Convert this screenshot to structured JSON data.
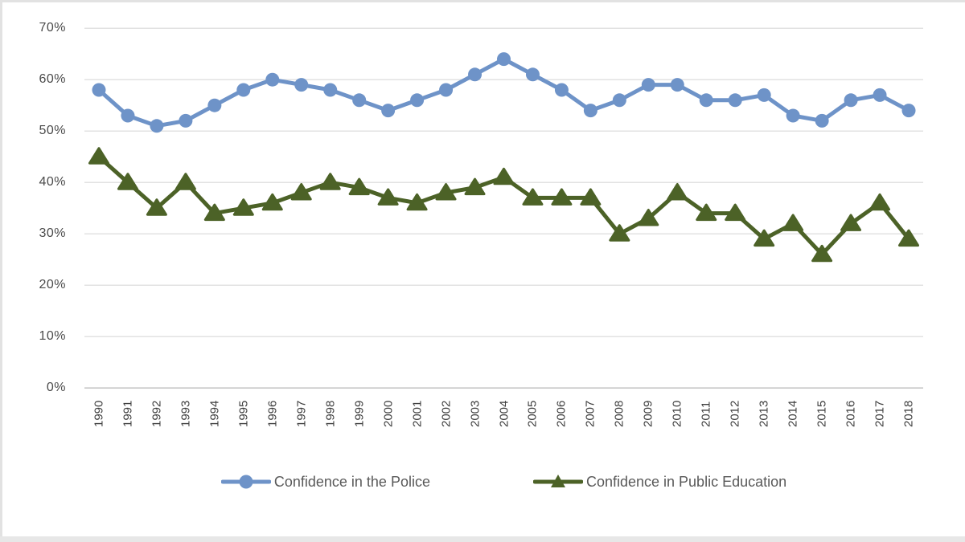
{
  "chart_data": {
    "type": "line",
    "title": "",
    "xlabel": "",
    "ylabel": "",
    "categories": [
      "1990",
      "1991",
      "1992",
      "1993",
      "1994",
      "1995",
      "1996",
      "1997",
      "1998",
      "1999",
      "2000",
      "2001",
      "2002",
      "2003",
      "2004",
      "2005",
      "2006",
      "2007",
      "2008",
      "2009",
      "2010",
      "2011",
      "2012",
      "2013",
      "2014",
      "2015",
      "2016",
      "2017",
      "2018"
    ],
    "series": [
      {
        "name": "Confidence in the Police",
        "marker": "circle",
        "color": "#6E93C8",
        "values": [
          58,
          53,
          51,
          52,
          55,
          58,
          60,
          59,
          58,
          56,
          54,
          56,
          58,
          61,
          64,
          61,
          58,
          54,
          56,
          59,
          59,
          56,
          56,
          57,
          53,
          52,
          56,
          57,
          54
        ]
      },
      {
        "name": "Confidence in Public Education",
        "marker": "triangle",
        "color": "#4C6227",
        "values": [
          45,
          40,
          35,
          40,
          34,
          35,
          36,
          38,
          40,
          39,
          37,
          36,
          38,
          39,
          41,
          37,
          37,
          37,
          30,
          33,
          38,
          34,
          34,
          29,
          32,
          26,
          32,
          36,
          29
        ]
      }
    ],
    "y_ticks": [
      "70%",
      "60%",
      "50%",
      "40%",
      "30%",
      "20%",
      "10%",
      "0%"
    ],
    "y_tick_values": [
      70,
      60,
      50,
      40,
      30,
      20,
      10,
      0
    ],
    "ylim": [
      0,
      70
    ],
    "grid": "horizontal",
    "gridline_color": "#d9d9d9",
    "baseline_color": "#c8c8c8",
    "axis_text_color": "#4a4a4a",
    "legend_position": "bottom"
  }
}
